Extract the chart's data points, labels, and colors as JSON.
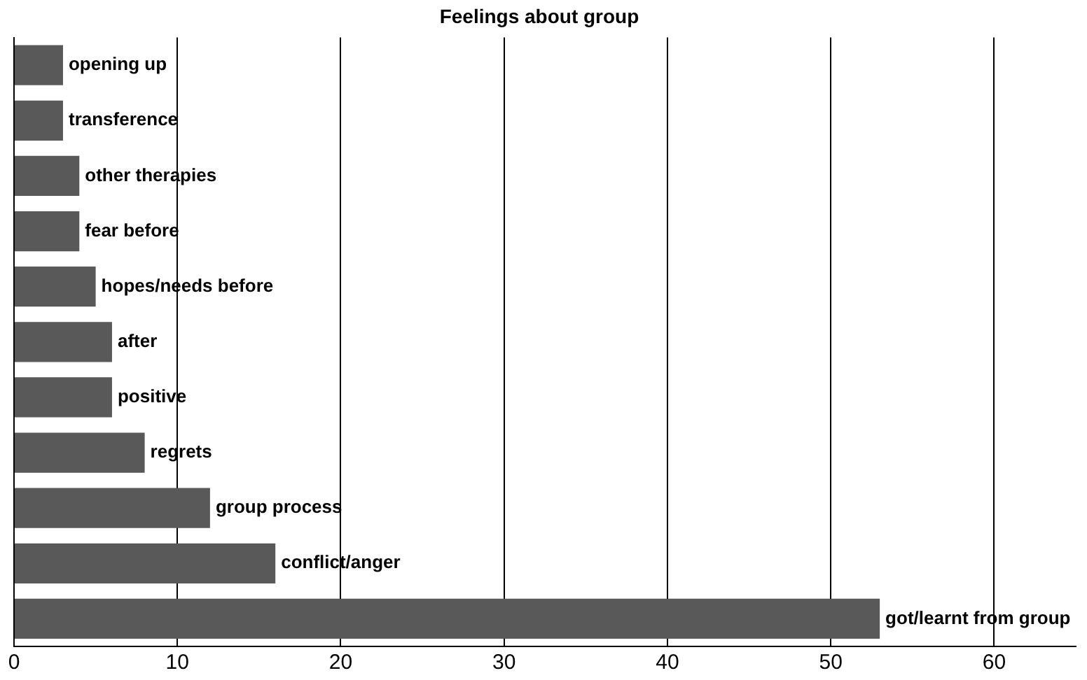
{
  "chart_data": {
    "type": "bar",
    "orientation": "horizontal",
    "title": "Feelings about group",
    "categories": [
      "opening up",
      "transference",
      "other therapies",
      "fear before",
      "hopes/needs before",
      "after",
      "positive",
      "regrets",
      "group process",
      "conflict/anger",
      "got/learnt from group"
    ],
    "values": [
      3,
      3,
      4,
      4,
      5,
      6,
      6,
      8,
      12,
      16,
      53
    ],
    "color": "#595959",
    "xlim": [
      0,
      65
    ],
    "xticks": [
      0,
      10,
      20,
      30,
      40,
      50,
      60
    ],
    "grid": "x",
    "tick_labels": "x",
    "legend": false
  }
}
